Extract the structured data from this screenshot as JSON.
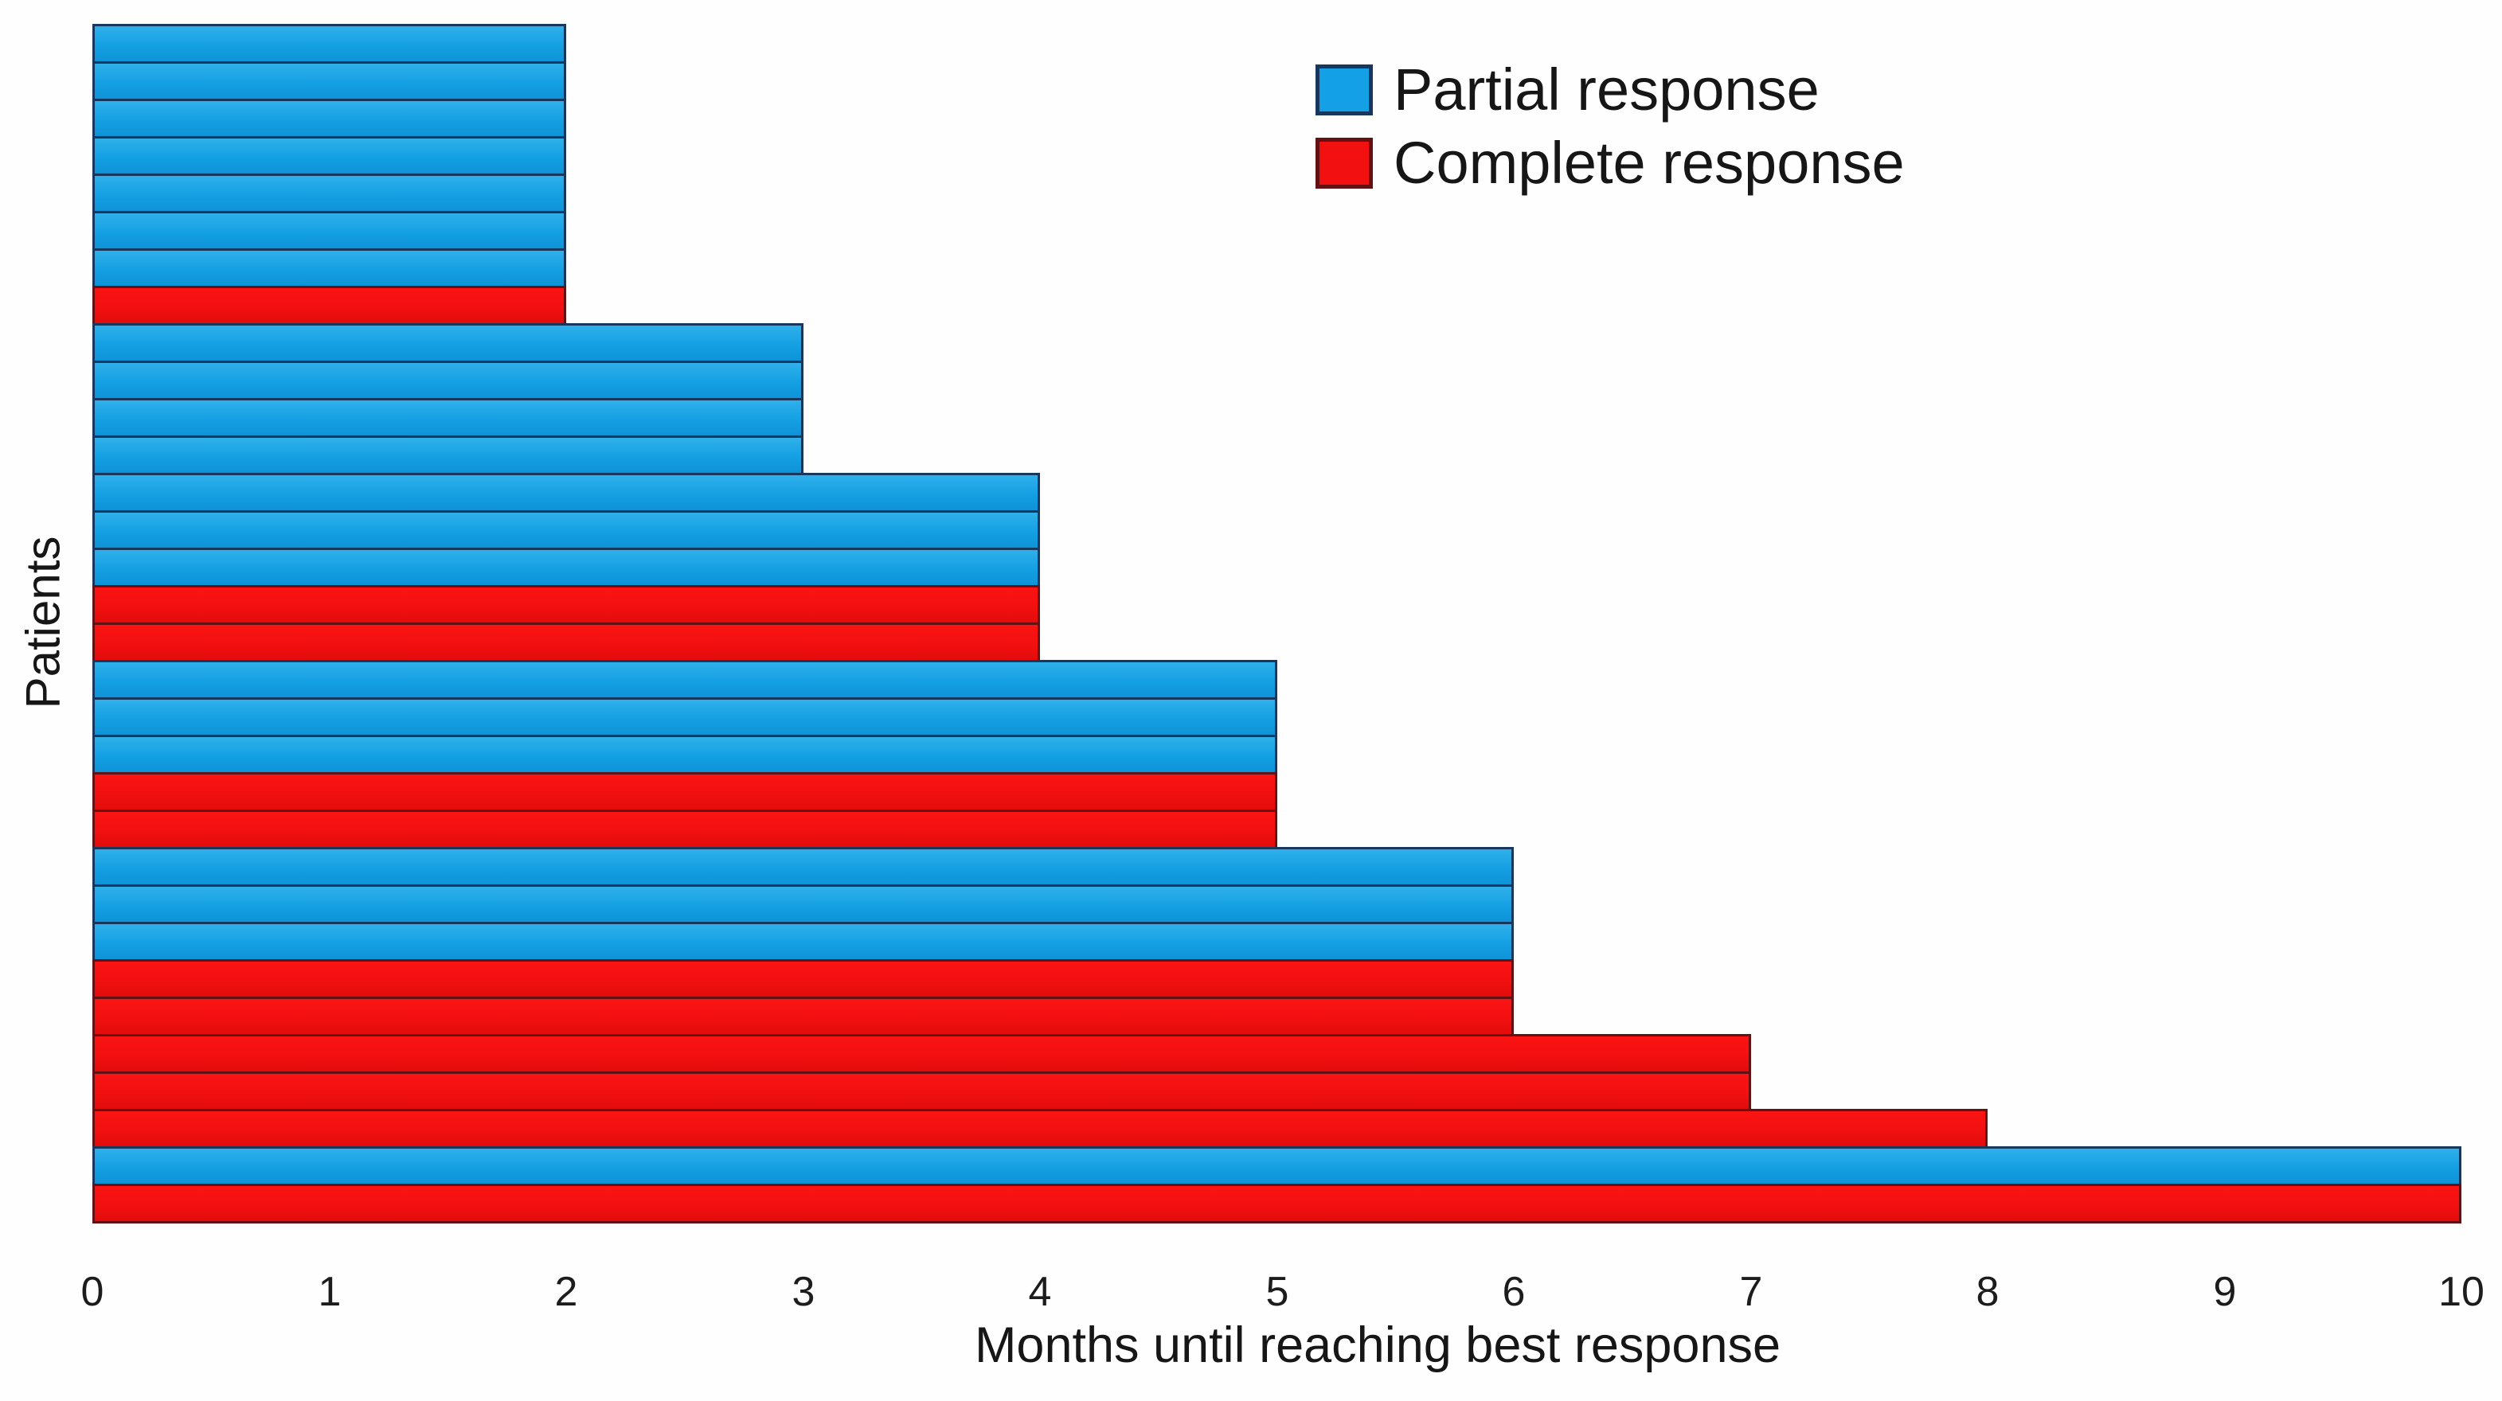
{
  "chart_data": {
    "type": "bar",
    "orientation": "horizontal",
    "title": "",
    "xlabel": "Months until reaching best response",
    "ylabel": "Patients",
    "xlim": [
      0,
      10
    ],
    "xticks": [
      "0",
      "1",
      "2",
      "3",
      "4",
      "5",
      "6",
      "7",
      "8",
      "9",
      "10"
    ],
    "grid": false,
    "legend_position": "top-right",
    "series": [
      {
        "name": "Partial response",
        "fill_color": "#14a0e4",
        "border_color": "#17375e"
      },
      {
        "name": "Complete response",
        "fill_color": "#f21010",
        "border_color": "#641114"
      }
    ],
    "bars": [
      {
        "patient": 1,
        "months": 2,
        "response": "partial"
      },
      {
        "patient": 2,
        "months": 2,
        "response": "partial"
      },
      {
        "patient": 3,
        "months": 2,
        "response": "partial"
      },
      {
        "patient": 4,
        "months": 2,
        "response": "partial"
      },
      {
        "patient": 5,
        "months": 2,
        "response": "partial"
      },
      {
        "patient": 6,
        "months": 2,
        "response": "partial"
      },
      {
        "patient": 7,
        "months": 2,
        "response": "partial"
      },
      {
        "patient": 8,
        "months": 2,
        "response": "complete"
      },
      {
        "patient": 9,
        "months": 3,
        "response": "partial"
      },
      {
        "patient": 10,
        "months": 3,
        "response": "partial"
      },
      {
        "patient": 11,
        "months": 3,
        "response": "partial"
      },
      {
        "patient": 12,
        "months": 3,
        "response": "partial"
      },
      {
        "patient": 13,
        "months": 4,
        "response": "partial"
      },
      {
        "patient": 14,
        "months": 4,
        "response": "partial"
      },
      {
        "patient": 15,
        "months": 4,
        "response": "partial"
      },
      {
        "patient": 16,
        "months": 4,
        "response": "complete"
      },
      {
        "patient": 17,
        "months": 4,
        "response": "complete"
      },
      {
        "patient": 18,
        "months": 5,
        "response": "partial"
      },
      {
        "patient": 19,
        "months": 5,
        "response": "partial"
      },
      {
        "patient": 20,
        "months": 5,
        "response": "partial"
      },
      {
        "patient": 21,
        "months": 5,
        "response": "complete"
      },
      {
        "patient": 22,
        "months": 5,
        "response": "complete"
      },
      {
        "patient": 23,
        "months": 6,
        "response": "partial"
      },
      {
        "patient": 24,
        "months": 6,
        "response": "partial"
      },
      {
        "patient": 25,
        "months": 6,
        "response": "partial"
      },
      {
        "patient": 26,
        "months": 6,
        "response": "complete"
      },
      {
        "patient": 27,
        "months": 6,
        "response": "complete"
      },
      {
        "patient": 28,
        "months": 7,
        "response": "complete"
      },
      {
        "patient": 29,
        "months": 7,
        "response": "complete"
      },
      {
        "patient": 30,
        "months": 8,
        "response": "complete"
      },
      {
        "patient": 31,
        "months": 10,
        "response": "partial"
      },
      {
        "patient": 32,
        "months": 10,
        "response": "complete"
      }
    ]
  },
  "legend": {
    "items": [
      {
        "label": "Partial response"
      },
      {
        "label": "Complete response"
      }
    ]
  }
}
